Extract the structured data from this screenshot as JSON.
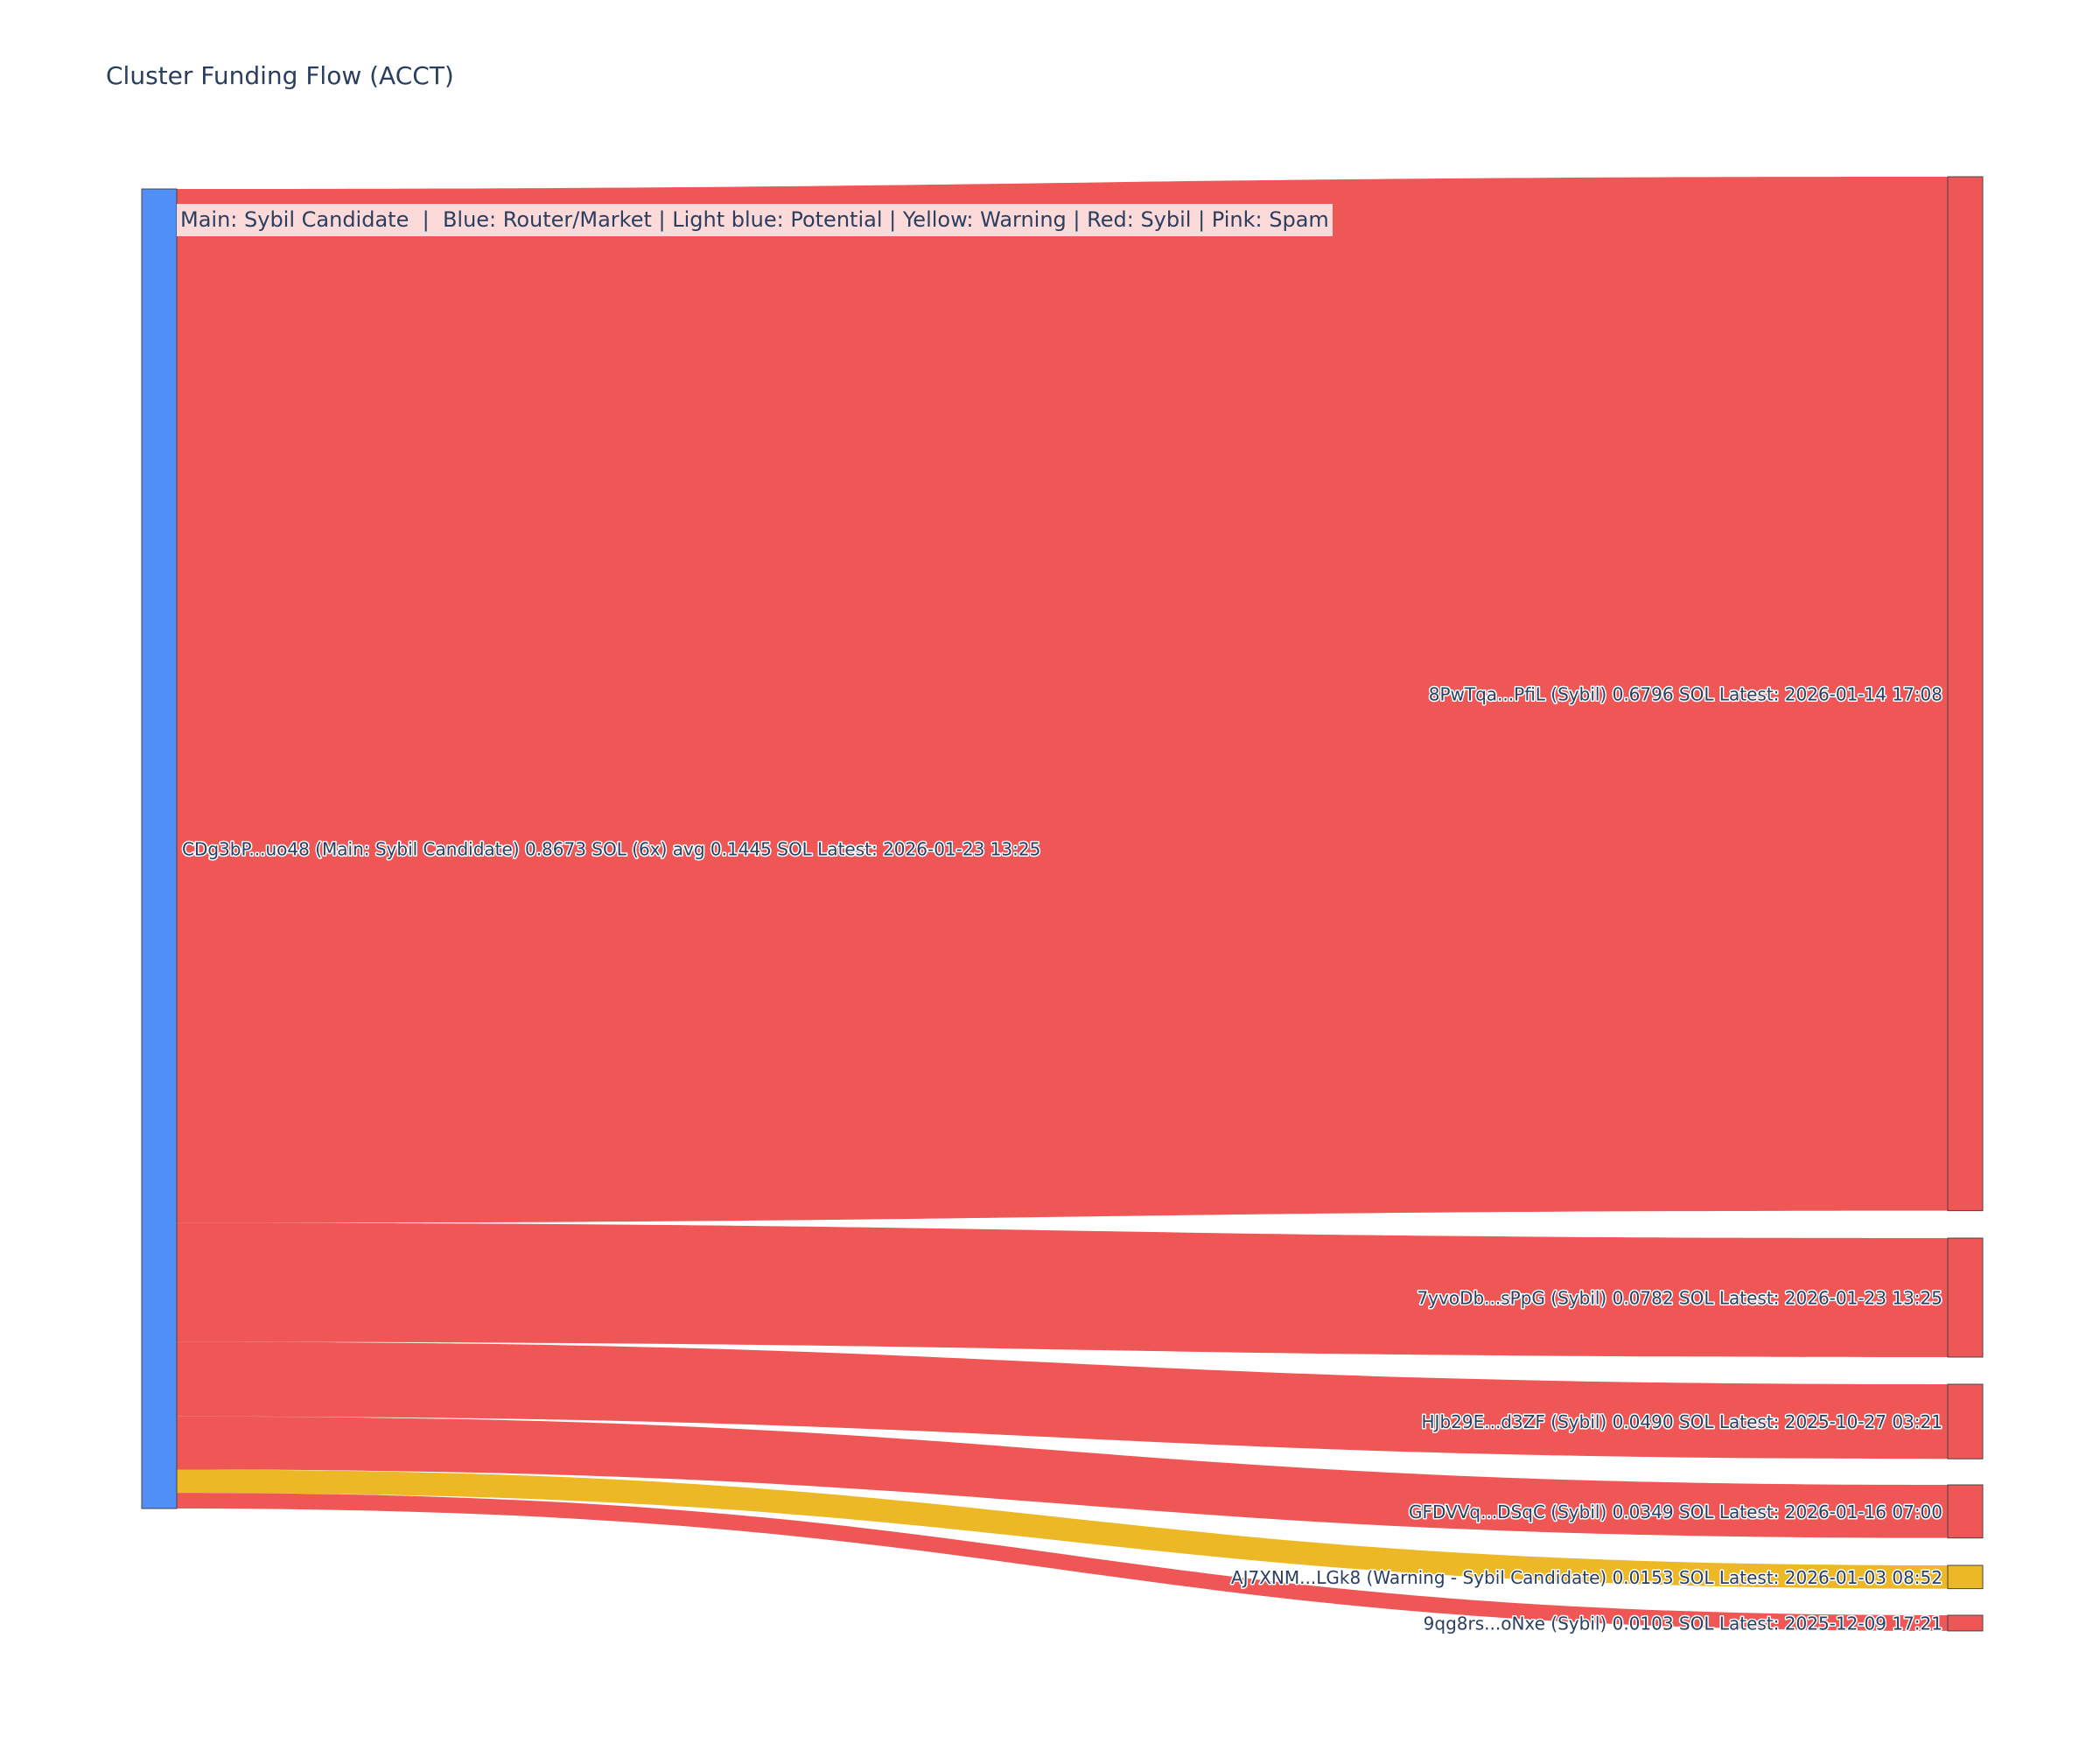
{
  "chart_data": {
    "type": "sankey",
    "title": "Cluster Funding Flow (ACCT)",
    "annotation": "Main: Sybil Candidate  |  Blue: Router/Market | Light blue: Potential | Yellow: Warning | Red: Sybil | Pink: Spam",
    "colors": {
      "main": "#4f8ff7",
      "sybil": "#ef5656",
      "warning": "#ecb825",
      "node_border": "#444444"
    },
    "source": {
      "label": "CDg3bP...uo48 (Main: Sybil Candidate) 0.8673 SOL (6x) avg 0.1445 SOL Latest: 2026-01-23 13:25",
      "value": 0.8673,
      "category": "main"
    },
    "targets": [
      {
        "label": "8PwTqa...PfiL (Sybil) 0.6796 SOL Latest: 2026-01-14 17:08",
        "value": 0.6796,
        "category": "sybil"
      },
      {
        "label": "7yvoDb...sPpG (Sybil) 0.0782 SOL Latest: 2026-01-23 13:25",
        "value": 0.0782,
        "category": "sybil"
      },
      {
        "label": "HJb29E...d3ZF (Sybil) 0.0490 SOL Latest: 2025-10-27 03:21",
        "value": 0.049,
        "category": "sybil"
      },
      {
        "label": "GFDVVq...DSqC (Sybil) 0.0349 SOL Latest: 2026-01-16 07:00",
        "value": 0.0349,
        "category": "sybil"
      },
      {
        "label": "AJ7XNM...LGk8 (Warning - Sybil Candidate) 0.0153 SOL Latest: 2026-01-03 08:52",
        "value": 0.0153,
        "category": "warning"
      },
      {
        "label": "9qg8rs...oNxe (Sybil) 0.0103 SOL Latest: 2025-12-09 17:21",
        "value": 0.0103,
        "category": "sybil"
      }
    ]
  }
}
